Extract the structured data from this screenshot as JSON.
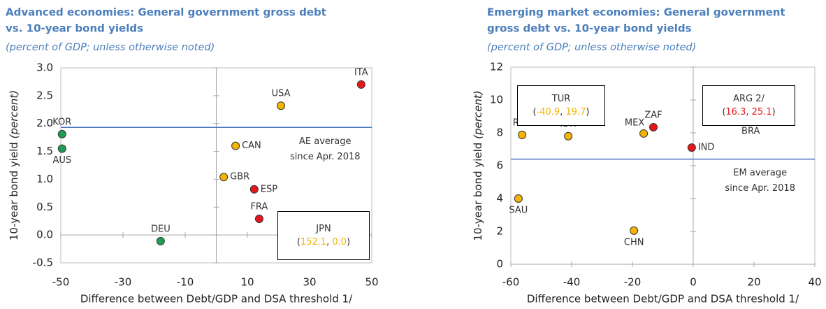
{
  "chart_data": [
    {
      "type": "scatter",
      "title": [
        "Advanced economies: General government gross debt",
        "vs. 10-year bond yields"
      ],
      "subtitle": "(percent of GDP; unless otherwise noted)",
      "ylabel": [
        "10-year bond yield",
        "(percent)"
      ],
      "xlabel": "Difference between Debt/GDP and DSA threshold 1/",
      "xlim": [
        -50,
        50
      ],
      "xticks": [
        -50,
        -30,
        -10,
        10,
        30,
        50
      ],
      "ylim": [
        -0.5,
        3.0
      ],
      "yticks": [
        -0.5,
        {
          "value": 0,
          "label": "0.0"
        },
        0.5,
        {
          "value": 1,
          "label": "1.0"
        },
        1.5,
        {
          "value": 2,
          "label": "2.0"
        },
        2.5,
        {
          "value": 3,
          "label": "3.0"
        }
      ],
      "labels": [
        "KOR",
        "AUS",
        "DEU",
        "USA",
        "ITA",
        "CAN",
        "GBR",
        "ESP",
        "FRA"
      ],
      "x": [
        -49.6,
        -49.6,
        -17.9,
        20.8,
        46.6,
        6.2,
        2.4,
        12.2,
        13.8
      ],
      "values": [
        1.81,
        1.55,
        -0.11,
        2.32,
        2.7,
        1.6,
        1.04,
        0.82,
        0.29
      ],
      "colors": [
        "#1f9d55",
        "#1f9d55",
        "#1f9d55",
        "#f5b400",
        "#e8161b",
        "#f5b400",
        "#f5b400",
        "#e8161b",
        "#e8161b"
      ],
      "reference_line": {
        "value": 1.93,
        "color": "#4472c4",
        "label": [
          "AE average",
          "since Apr. 2018"
        ]
      },
      "outliers": [
        {
          "label": "JPN",
          "x": 152.1,
          "y": 0,
          "value_labels": [
            "152.1",
            "0.0"
          ],
          "color": "#f5b400"
        }
      ]
    },
    {
      "type": "scatter",
      "title": [
        "Emerging market economies: General government",
        "gross debt vs. 10-year bond yields"
      ],
      "subtitle": "(percent of GDP; unless otherwise noted)",
      "ylabel": [
        "10-year bond yield",
        "(percent)"
      ],
      "xlabel": "Difference between Debt/GDP and DSA threshold 1/",
      "xlim": [
        -60,
        40
      ],
      "xticks": [
        -60,
        -40,
        -20,
        0,
        20,
        40
      ],
      "ylim": [
        0,
        12
      ],
      "yticks": [
        0,
        2,
        4,
        6,
        8,
        10,
        12
      ],
      "labels": [
        "RUS",
        "IDN",
        "SAU",
        "CHN",
        "MEX",
        "ZAF",
        "IND",
        "BRA"
      ],
      "x": [
        -56.3,
        -41.1,
        -57.5,
        -19.5,
        -16.3,
        -13.1,
        -0.5,
        18.9
      ],
      "values": [
        7.87,
        7.8,
        4.0,
        2.05,
        7.96,
        8.34,
        7.1,
        8.8
      ],
      "colors": [
        "#f5b400",
        "#f5b400",
        "#f5b400",
        "#f5b400",
        "#f5b400",
        "#e8161b",
        "#e8161b",
        "#e8161b"
      ],
      "reference_line": {
        "value": 6.4,
        "color": "#4472c4",
        "label": [
          "EM average",
          "since Apr. 2018"
        ]
      },
      "outliers": [
        {
          "label": "TUR",
          "x": -40.9,
          "y": 19.7,
          "value_labels": [
            "-40.9",
            "19.7"
          ],
          "color": "#f5b400"
        },
        {
          "label": "ARG 2/",
          "x": 16.3,
          "y": 25.1,
          "value_labels": [
            "16.3",
            "25.1"
          ],
          "color": "#e8161b"
        }
      ]
    }
  ]
}
